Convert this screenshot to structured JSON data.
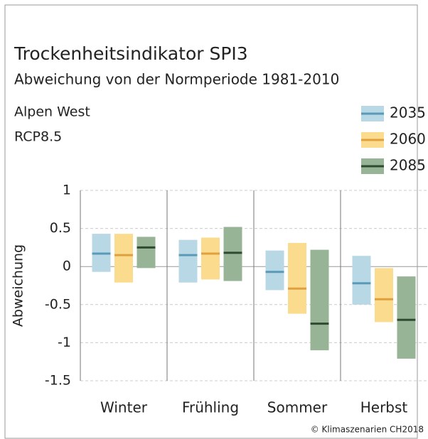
{
  "chart_data": {
    "type": "range-bar",
    "title": "Trockenheitsindikator SPI3",
    "subtitle": "Abweichung von der Normperiode 1981-2010",
    "region": "Alpen West",
    "scenario": "RCP8.5",
    "y_label": "Abweichung",
    "source": "© Klimaszenarien CH2018",
    "categories": [
      "Winter",
      "Frühling",
      "Sommer",
      "Herbst"
    ],
    "series": [
      {
        "name": "2035",
        "color": "#5a9ab8",
        "fill": "#b8d8e6",
        "values": [
          0.17,
          0.15,
          -0.07,
          -0.22
        ],
        "low": [
          -0.07,
          -0.21,
          -0.31,
          -0.5
        ],
        "high": [
          0.43,
          0.35,
          0.21,
          0.14
        ]
      },
      {
        "name": "2060",
        "color": "#e0a040",
        "fill": "#fbdc8e",
        "values": [
          0.15,
          0.17,
          -0.29,
          -0.43
        ],
        "low": [
          -0.21,
          -0.17,
          -0.62,
          -0.73
        ],
        "high": [
          0.43,
          0.38,
          0.31,
          -0.02
        ]
      },
      {
        "name": "2085",
        "color": "#2f4a30",
        "fill": "#98b496",
        "values": [
          0.25,
          0.18,
          -0.75,
          -0.7
        ],
        "low": [
          -0.02,
          -0.19,
          -1.1,
          -1.21
        ],
        "high": [
          0.39,
          0.52,
          0.22,
          -0.13
        ]
      }
    ],
    "ylim": [
      -1.5,
      1
    ],
    "yticks": [
      1,
      0.5,
      0,
      -0.5,
      -1,
      -1.5
    ],
    "grid": true
  }
}
